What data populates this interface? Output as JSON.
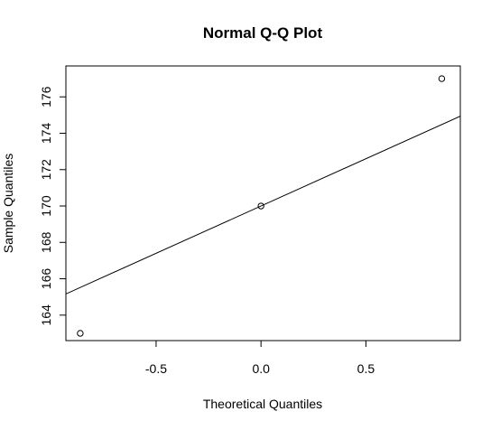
{
  "chart_data": {
    "type": "scatter",
    "title": "Normal Q-Q Plot",
    "xlabel": "Theoretical Quantiles",
    "ylabel": "Sample Quantiles",
    "xlim": [
      -0.93,
      0.95
    ],
    "ylim": [
      162.6,
      177.7
    ],
    "x_ticks": [
      -0.5,
      0.0,
      0.5
    ],
    "x_tick_labels": [
      "-0.5",
      "0.0",
      "0.5"
    ],
    "y_ticks": [
      164,
      166,
      168,
      170,
      172,
      174,
      176
    ],
    "y_tick_labels": [
      "164",
      "166",
      "168",
      "170",
      "172",
      "174",
      "176"
    ],
    "points": [
      {
        "x": -0.8616,
        "y": 163
      },
      {
        "x": 0.0,
        "y": 170
      },
      {
        "x": 0.8616,
        "y": 177
      }
    ],
    "reference_line": {
      "intercept": 170,
      "slope": 5.2
    },
    "grid": false,
    "colors": {
      "points": "#000000",
      "line": "#000000",
      "frame": "#000000"
    }
  }
}
